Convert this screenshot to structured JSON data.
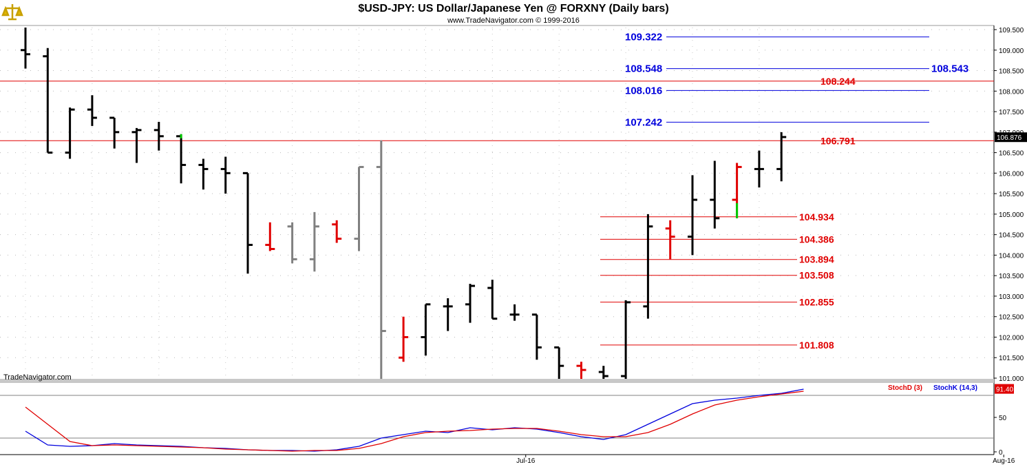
{
  "header": {
    "title": "$USD-JPY:  US Dollar/Japanese Yen @ FORXNY  (Daily bars)",
    "subtitle": "www.TradeNavigator.com © 1999-2016",
    "watermark": "TradeNavigator.com",
    "logo_icon": "scales-icon"
  },
  "colors": {
    "up": "#000000",
    "down_red": "#e00000",
    "gray": "#808080",
    "blue_level": "#0000dd",
    "red_level": "#e00000",
    "green": "#00cc00"
  },
  "chart_data": [
    {
      "type": "ohlc",
      "title": "$USD-JPY:  US Dollar/Japanese Yen @ FORXNY  (Daily bars)",
      "ylim": [
        100.9,
        109.6
      ],
      "y_ticks": [
        "109.500",
        "109.000",
        "108.500",
        "108.000",
        "107.500",
        "107.000",
        "106.500",
        "106.000",
        "105.500",
        "105.000",
        "104.500",
        "104.000",
        "103.500",
        "103.000",
        "102.500",
        "102.000",
        "101.500",
        "101.000"
      ],
      "x_tick_labels": [
        {
          "label": "Jul-16",
          "idx": 22.5
        },
        {
          "label": "Aug-16",
          "idx": 44
        }
      ],
      "last_price": "106.876",
      "bars": [
        {
          "o": 109.0,
          "h": 109.55,
          "l": 108.55,
          "c": 108.9,
          "col": "black"
        },
        {
          "o": 108.85,
          "h": 109.05,
          "l": 106.5,
          "c": 106.5,
          "col": "black"
        },
        {
          "o": 106.5,
          "h": 107.6,
          "l": 106.35,
          "c": 107.55,
          "col": "black"
        },
        {
          "o": 107.55,
          "h": 107.9,
          "l": 107.15,
          "c": 107.35,
          "col": "black"
        },
        {
          "o": 107.35,
          "h": 107.35,
          "l": 106.6,
          "c": 107.0,
          "col": "black"
        },
        {
          "o": 107.0,
          "h": 107.1,
          "l": 106.25,
          "c": 107.05,
          "col": "black"
        },
        {
          "o": 107.05,
          "h": 107.25,
          "l": 106.55,
          "c": 106.9,
          "col": "black"
        },
        {
          "o": 106.9,
          "h": 106.95,
          "l": 105.75,
          "c": 106.2,
          "col": "black",
          "green_tip": true
        },
        {
          "o": 106.2,
          "h": 106.35,
          "l": 105.6,
          "c": 106.1,
          "col": "black"
        },
        {
          "o": 106.1,
          "h": 106.4,
          "l": 105.5,
          "c": 106.0,
          "col": "black"
        },
        {
          "o": 106.0,
          "h": 106.0,
          "l": 103.55,
          "c": 104.25,
          "col": "black"
        },
        {
          "o": 104.25,
          "h": 104.8,
          "l": 104.1,
          "c": 104.15,
          "col": "red"
        },
        {
          "o": 104.7,
          "h": 104.8,
          "l": 103.8,
          "c": 103.9,
          "col": "gray"
        },
        {
          "o": 103.9,
          "h": 105.05,
          "l": 103.6,
          "c": 104.7,
          "col": "gray"
        },
        {
          "o": 104.75,
          "h": 104.85,
          "l": 104.3,
          "c": 104.4,
          "col": "red"
        },
        {
          "o": 104.4,
          "h": 106.15,
          "l": 104.1,
          "c": 106.15,
          "col": "gray"
        },
        {
          "o": 106.15,
          "h": 106.8,
          "l": 100.85,
          "c": 102.15,
          "col": "gray"
        },
        {
          "o": 101.5,
          "h": 102.5,
          "l": 101.4,
          "c": 102.0,
          "col": "red"
        },
        {
          "o": 102.0,
          "h": 102.8,
          "l": 101.55,
          "c": 102.8,
          "col": "black"
        },
        {
          "o": 102.75,
          "h": 102.95,
          "l": 102.15,
          "c": 102.75,
          "col": "black"
        },
        {
          "o": 102.8,
          "h": 103.3,
          "l": 102.35,
          "c": 103.25,
          "col": "black"
        },
        {
          "o": 103.2,
          "h": 103.4,
          "l": 102.45,
          "c": 102.45,
          "col": "black"
        },
        {
          "o": 102.55,
          "h": 102.8,
          "l": 102.4,
          "c": 102.55,
          "col": "black"
        },
        {
          "o": 102.55,
          "h": 102.55,
          "l": 101.45,
          "c": 101.75,
          "col": "black"
        },
        {
          "o": 101.75,
          "h": 101.75,
          "l": 100.95,
          "c": 101.3,
          "col": "black"
        },
        {
          "o": 101.3,
          "h": 101.4,
          "l": 100.95,
          "c": 101.2,
          "col": "red"
        },
        {
          "o": 101.15,
          "h": 101.3,
          "l": 100.95,
          "c": 101.05,
          "col": "black"
        },
        {
          "o": 101.05,
          "h": 102.9,
          "l": 100.95,
          "c": 102.85,
          "col": "black"
        },
        {
          "o": 102.75,
          "h": 105.0,
          "l": 102.45,
          "c": 104.7,
          "col": "black"
        },
        {
          "o": 104.65,
          "h": 104.85,
          "l": 103.9,
          "c": 104.45,
          "col": "red"
        },
        {
          "o": 104.45,
          "h": 105.95,
          "l": 104.0,
          "c": 105.35,
          "col": "black"
        },
        {
          "o": 105.35,
          "h": 106.3,
          "l": 104.65,
          "c": 104.9,
          "col": "black"
        },
        {
          "o": 105.35,
          "h": 106.25,
          "l": 104.9,
          "c": 106.15,
          "col": "red",
          "green_tip": true
        },
        {
          "o": 106.1,
          "h": 106.55,
          "l": 105.65,
          "c": 106.1,
          "col": "black"
        },
        {
          "o": 106.1,
          "h": 107.0,
          "l": 105.8,
          "c": 106.88,
          "col": "black"
        }
      ],
      "levels_blue": [
        {
          "value": 109.322,
          "label": "109.322",
          "right_label": ""
        },
        {
          "value": 108.548,
          "label": "108.548",
          "right_label": "108.543"
        },
        {
          "value": 108.016,
          "label": "108.016",
          "right_label": ""
        },
        {
          "value": 107.242,
          "label": "107.242",
          "right_label": ""
        }
      ],
      "levels_red_full": [
        {
          "value": 108.244,
          "label": "108.244"
        },
        {
          "value": 106.791,
          "label": "106.791"
        }
      ],
      "levels_red_short": [
        {
          "value": 104.934,
          "label": "104.934"
        },
        {
          "value": 104.386,
          "label": "104.386"
        },
        {
          "value": 103.894,
          "label": "103.894"
        },
        {
          "value": 103.508,
          "label": "103.508"
        },
        {
          "value": 102.855,
          "label": "102.855"
        },
        {
          "value": 101.808,
          "label": "101.808"
        }
      ]
    },
    {
      "type": "line",
      "title": "",
      "ylim": [
        0,
        100
      ],
      "y_ticks": [
        "50",
        "0"
      ],
      "legend": [
        {
          "name": "StochD (3)",
          "color": "#e00000"
        },
        {
          "name": "StochK (14,3)",
          "color": "#0000dd"
        }
      ],
      "last_value": "91.40",
      "series": [
        {
          "name": "StochK (14,3)",
          "color": "#0000dd",
          "values": [
            30,
            10,
            8,
            9,
            12,
            10,
            9,
            8,
            6,
            5,
            3,
            2,
            2,
            1,
            3,
            8,
            20,
            25,
            30,
            28,
            35,
            32,
            35,
            33,
            28,
            22,
            18,
            25,
            40,
            55,
            70,
            75,
            78,
            82,
            85,
            91
          ]
        },
        {
          "name": "StochD (3)",
          "color": "#e00000",
          "values": [
            65,
            40,
            15,
            9,
            10,
            9,
            8,
            7,
            6,
            4,
            3,
            2,
            1,
            2,
            2,
            5,
            12,
            22,
            28,
            30,
            31,
            33,
            34,
            34,
            30,
            25,
            22,
            22,
            28,
            40,
            55,
            68,
            75,
            80,
            84,
            88
          ]
        }
      ]
    }
  ]
}
